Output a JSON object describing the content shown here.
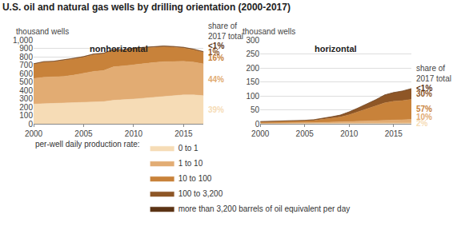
{
  "chart_data": [
    {
      "type": "area",
      "stacked": true,
      "grid": true,
      "legend": "bottom",
      "title": "U.S. oil and natural gas wells by drilling orientation (2000-2017)",
      "legend_title": "per-well daily production rate:",
      "subtitle": "nonhorizontal",
      "ylabel": "thousand wells",
      "share_title": "share of 2017 total",
      "x": [
        2000,
        2001,
        2002,
        2003,
        2004,
        2005,
        2006,
        2007,
        2008,
        2009,
        2010,
        2011,
        2012,
        2013,
        2014,
        2015,
        2016,
        2017
      ],
      "xlim": [
        2000,
        2017
      ],
      "xticks": [
        2000,
        2005,
        2010,
        2015
      ],
      "ylim": [
        0,
        1000
      ],
      "yticks": [
        0,
        100,
        200,
        300,
        400,
        500,
        600,
        700,
        800,
        900,
        {
          "value": 1000,
          "label": "1,000"
        }
      ],
      "series": [
        {
          "name": "0 to 1",
          "color": "#f6dcb6",
          "share_label": "39%",
          "values": [
            235,
            240,
            240,
            245,
            250,
            255,
            265,
            265,
            280,
            285,
            295,
            305,
            315,
            325,
            335,
            345,
            345,
            335
          ]
        },
        {
          "name": "1 to 10",
          "color": "#e2ac73",
          "share_label": "44%",
          "values": [
            305,
            315,
            320,
            320,
            330,
            345,
            360,
            370,
            400,
            405,
            410,
            415,
            415,
            415,
            410,
            400,
            390,
            380
          ]
        },
        {
          "name": "10 to 100",
          "color": "#c8823a",
          "share_label": "16%",
          "values": [
            170,
            180,
            180,
            190,
            195,
            195,
            200,
            200,
            200,
            185,
            190,
            185,
            180,
            180,
            170,
            160,
            148,
            138
          ]
        },
        {
          "name": "100 to 3,200",
          "color": "#8e5626",
          "share_label": "1%",
          "values": [
            6,
            6,
            6,
            6,
            6,
            7,
            7,
            7,
            7,
            7,
            7,
            7,
            7,
            7,
            7,
            7,
            7,
            7
          ]
        },
        {
          "name": "more than 3,200 barrels of oil equivalent per day",
          "color": "#5b3314",
          "share_label": "<1%",
          "values": [
            0.3,
            0.3,
            0.3,
            0.3,
            0.3,
            0.3,
            0.3,
            0.3,
            0.4,
            0.4,
            0.4,
            0.4,
            0.4,
            0.5,
            0.5,
            0.5,
            0.5,
            0.5
          ]
        }
      ]
    },
    {
      "type": "area",
      "stacked": true,
      "grid": true,
      "subtitle": "horizontal",
      "ylabel": "thousand wells",
      "share_title": "share of 2017 total",
      "x": [
        2000,
        2001,
        2002,
        2003,
        2004,
        2005,
        2006,
        2007,
        2008,
        2009,
        2010,
        2011,
        2012,
        2013,
        2014,
        2015,
        2016,
        2017
      ],
      "xlim": [
        2000,
        2017
      ],
      "xticks": [
        2000,
        2005,
        2010,
        2015
      ],
      "ylim": [
        0,
        300
      ],
      "yticks": [
        0,
        50,
        100,
        150,
        200,
        250,
        300
      ],
      "series": [
        {
          "name": "0 to 1",
          "color": "#f6dcb6",
          "share_label": "2%",
          "values": [
            0.5,
            0.5,
            0.5,
            0.5,
            0.5,
            0.5,
            0.5,
            1,
            1,
            1,
            1.5,
            1.5,
            2,
            2,
            2,
            2.5,
            2.5,
            2.5
          ]
        },
        {
          "name": "1 to 10",
          "color": "#e2ac73",
          "share_label": "10%",
          "values": [
            2,
            2,
            2,
            2.5,
            2.5,
            3,
            3.5,
            4,
            5,
            6,
            7,
            8,
            9,
            10,
            11,
            12,
            12.5,
            13
          ]
        },
        {
          "name": "10 to 100",
          "color": "#c8823a",
          "share_label": "57%",
          "values": [
            4,
            4.5,
            5,
            5.5,
            6,
            7,
            8,
            11,
            14,
            17,
            24,
            33,
            42,
            52,
            62,
            66,
            68,
            72
          ]
        },
        {
          "name": "100 to 3,200",
          "color": "#8e5626",
          "share_label": "30%",
          "values": [
            1.5,
            1.5,
            1.5,
            1.5,
            2,
            2,
            2.5,
            3,
            5,
            7,
            10,
            14,
            18,
            22,
            28,
            31,
            34,
            38
          ]
        },
        {
          "name": "more than 3,200 barrels of oil equivalent per day",
          "color": "#5b3314",
          "share_label": "<1%",
          "values": [
            0,
            0,
            0,
            0,
            0,
            0,
            0,
            0.1,
            0.1,
            0.1,
            0.2,
            0.2,
            0.3,
            0.3,
            0.4,
            0.4,
            0.5,
            0.5
          ]
        }
      ]
    }
  ]
}
